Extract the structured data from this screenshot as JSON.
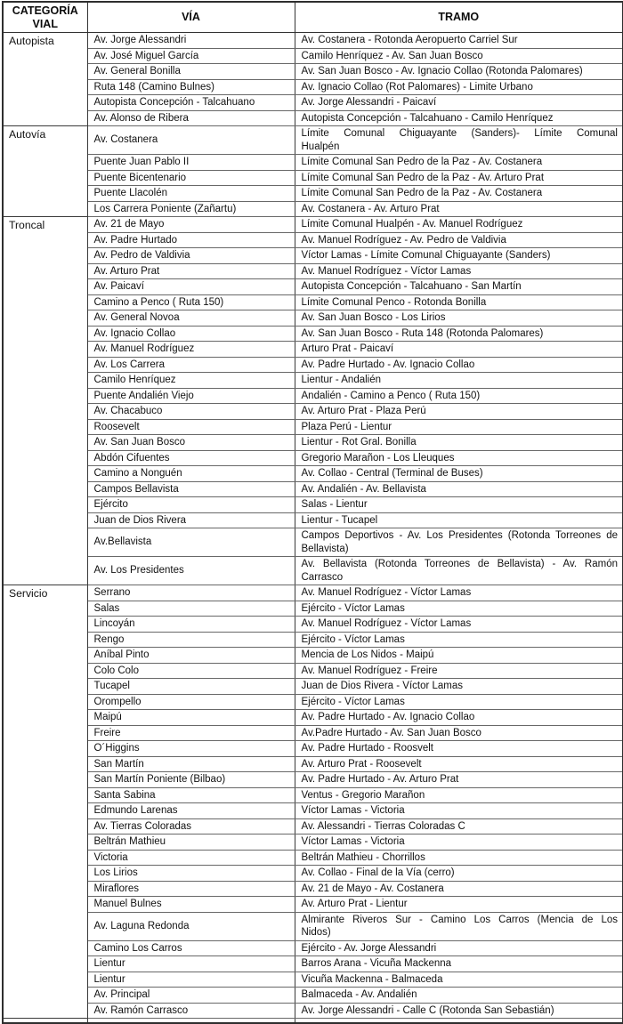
{
  "table": {
    "headers": [
      "CATEGORÍA VIAL",
      "VÍA",
      "TRAMO"
    ],
    "sections": [
      {
        "category": "Autopista",
        "rows": [
          {
            "via": "Av. Jorge Alessandri",
            "tramo": "Av. Costanera - Rotonda Aeropuerto Carriel Sur"
          },
          {
            "via": "Av. José Miguel García",
            "tramo": "Camilo Henríquez - Av. San Juan Bosco"
          },
          {
            "via": "Av. General Bonilla",
            "tramo": "Av. San Juan Bosco - Av. Ignacio Collao (Rotonda Palomares)"
          },
          {
            "via": "Ruta 148 (Camino Bulnes)",
            "tramo": "Av. Ignacio Collao (Rot Palomares) - Limite Urbano"
          },
          {
            "via": "Autopista Concepción - Talcahuano",
            "tramo": "Av. Jorge Alessandri - Paicaví"
          },
          {
            "via": "Av. Alonso de Ribera",
            "tramo": "Autopista Concepción - Talcahuano - Camilo Henríquez"
          }
        ]
      },
      {
        "category": "Autovía",
        "rows": [
          {
            "via": "Av. Costanera",
            "tramo": "Límite Comunal Chiguayante (Sanders)- Límite Comunal\nHualpén",
            "wrap": true
          },
          {
            "via": "Puente Juan Pablo II",
            "tramo": "Límite Comunal San Pedro de la Paz - Av. Costanera"
          },
          {
            "via": "Puente Bicentenario",
            "tramo": "Límite Comunal San Pedro de la Paz - Av. Arturo Prat"
          },
          {
            "via": "Puente Llacolén",
            "tramo": "Límite Comunal San Pedro de la Paz - Av. Costanera"
          },
          {
            "via": "Los Carrera Poniente (Zañartu)",
            "tramo": "Av. Costanera - Av. Arturo Prat"
          }
        ]
      },
      {
        "category": "Troncal",
        "rows": [
          {
            "via": "Av. 21 de Mayo",
            "tramo": "Límite Comunal Hualpén - Av. Manuel Rodríguez"
          },
          {
            "via": "Av. Padre Hurtado",
            "tramo": "Av. Manuel Rodríguez - Av. Pedro de Valdivia"
          },
          {
            "via": "Av. Pedro de Valdivia",
            "tramo": "Víctor Lamas - Límite Comunal Chiguayante (Sanders)"
          },
          {
            "via": "Av. Arturo Prat",
            "tramo": "Av. Manuel Rodríguez - Víctor Lamas"
          },
          {
            "via": "Av. Paicaví",
            "tramo": "Autopista Concepción - Talcahuano - San Martín"
          },
          {
            "via": "Camino a Penco ( Ruta 150)",
            "tramo": "Límite Comunal Penco - Rotonda Bonilla"
          },
          {
            "via": "Av. General Novoa",
            "tramo": "Av. San Juan Bosco - Los Lirios"
          },
          {
            "via": "Av. Ignacio Collao",
            "tramo": "Av. San Juan Bosco - Ruta 148 (Rotonda Palomares)"
          },
          {
            "via": "Av. Manuel Rodríguez",
            "tramo": "Arturo Prat - Paicaví"
          },
          {
            "via": "Av. Los Carrera",
            "tramo": "Av. Padre Hurtado - Av. Ignacio Collao"
          },
          {
            "via": "Camilo Henríquez",
            "tramo": "Lientur - Andalién"
          },
          {
            "via": "Puente Andalién Viejo",
            "tramo": "Andalién - Camino a Penco ( Ruta 150)"
          },
          {
            "via": "Av. Chacabuco",
            "tramo": "Av. Arturo Prat - Plaza Perú"
          },
          {
            "via": "Roosevelt",
            "tramo": "Plaza Perú - Lientur"
          },
          {
            "via": "Av. San Juan Bosco",
            "tramo": "Lientur - Rot Gral. Bonilla"
          },
          {
            "via": "Abdón Cifuentes",
            "tramo": "Gregorio Marañon - Los Lleuques"
          },
          {
            "via": "Camino a Nonguén",
            "tramo": "Av. Collao - Central (Terminal de Buses)"
          },
          {
            "via": "Campos Bellavista",
            "tramo": "Av. Andalién - Av. Bellavista"
          },
          {
            "via": "Ejército",
            "tramo": "Salas - Lientur"
          },
          {
            "via": "Juan de Dios Rivera",
            "tramo": "Lientur - Tucapel"
          },
          {
            "via": "Av.Bellavista",
            "tramo": "Campos Deportivos - Av. Los Presidentes (Rotonda Torreones de\nBellavista)",
            "wrap": true
          },
          {
            "via": "Av. Los Presidentes",
            "tramo": "Av. Bellavista (Rotonda Torreones de Bellavista) - Av. Ramón\nCarrasco",
            "wrap": true
          }
        ]
      },
      {
        "category": "Servicio",
        "rows": [
          {
            "via": "Serrano",
            "tramo": "Av. Manuel Rodríguez - Víctor Lamas"
          },
          {
            "via": "Salas",
            "tramo": "Ejército - Víctor Lamas"
          },
          {
            "via": "Lincoyán",
            "tramo": "Av. Manuel Rodríguez - Víctor Lamas"
          },
          {
            "via": "Rengo",
            "tramo": "Ejército - Víctor Lamas"
          },
          {
            "via": "Aníbal Pinto",
            "tramo": "Mencia de Los Nidos - Maipú"
          },
          {
            "via": "Colo Colo",
            "tramo": "Av. Manuel Rodríguez - Freire"
          },
          {
            "via": "Tucapel",
            "tramo": "Juan de Dios Rivera - Víctor Lamas"
          },
          {
            "via": "Orompello",
            "tramo": "Ejército - Víctor Lamas"
          },
          {
            "via": "Maipú",
            "tramo": "Av. Padre Hurtado - Av. Ignacio Collao"
          },
          {
            "via": "Freire",
            "tramo": "Av.Padre Hurtado - Av. San Juan Bosco"
          },
          {
            "via": "O´Higgins",
            "tramo": "Av. Padre Hurtado - Roosvelt"
          },
          {
            "via": "San Martín",
            "tramo": "Av. Arturo Prat - Roosevelt"
          },
          {
            "via": "San Martín Poniente (Bilbao)",
            "tramo": "Av. Padre Hurtado - Av. Arturo Prat"
          },
          {
            "via": "Santa Sabina",
            "tramo": "Ventus - Gregorio Marañon"
          },
          {
            "via": "Edmundo Larenas",
            "tramo": "Víctor Lamas - Victoria"
          },
          {
            "via": "Av. Tierras Coloradas",
            "tramo": "Av. Alessandri - Tierras Coloradas C"
          },
          {
            "via": "Beltrán Mathieu",
            "tramo": "Víctor Lamas - Victoria"
          },
          {
            "via": "Victoria",
            "tramo": "Beltrán Mathieu - Chorrillos"
          },
          {
            "via": "Los Lirios",
            "tramo": "Av. Collao - Final de la Vía (cerro)"
          },
          {
            "via": "Miraflores",
            "tramo": "Av. 21 de Mayo - Av. Costanera"
          },
          {
            "via": "Manuel Bulnes",
            "tramo": "Av. Arturo Prat - Lientur"
          },
          {
            "via": "Av. Laguna Redonda",
            "tramo": "Almirante Riveros Sur - Camino Los Carros (Mencia de Los\nNidos)",
            "wrap": true
          },
          {
            "via": "Camino Los Carros",
            "tramo": "Ejército - Av. Jorge Alessandri"
          },
          {
            "via": "Lientur",
            "tramo": "Barros Arana - Vicuña Mackenna"
          },
          {
            "via": "Lientur",
            "tramo": "Vicuña Mackenna - Balmaceda"
          },
          {
            "via": "Av. Principal",
            "tramo": "Balmaceda - Av. Andalién"
          },
          {
            "via": "Av. Ramón Carrasco",
            "tramo": "Av. Jorge Alessandri - Calle C (Rotonda San Sebastián)"
          }
        ]
      }
    ]
  }
}
